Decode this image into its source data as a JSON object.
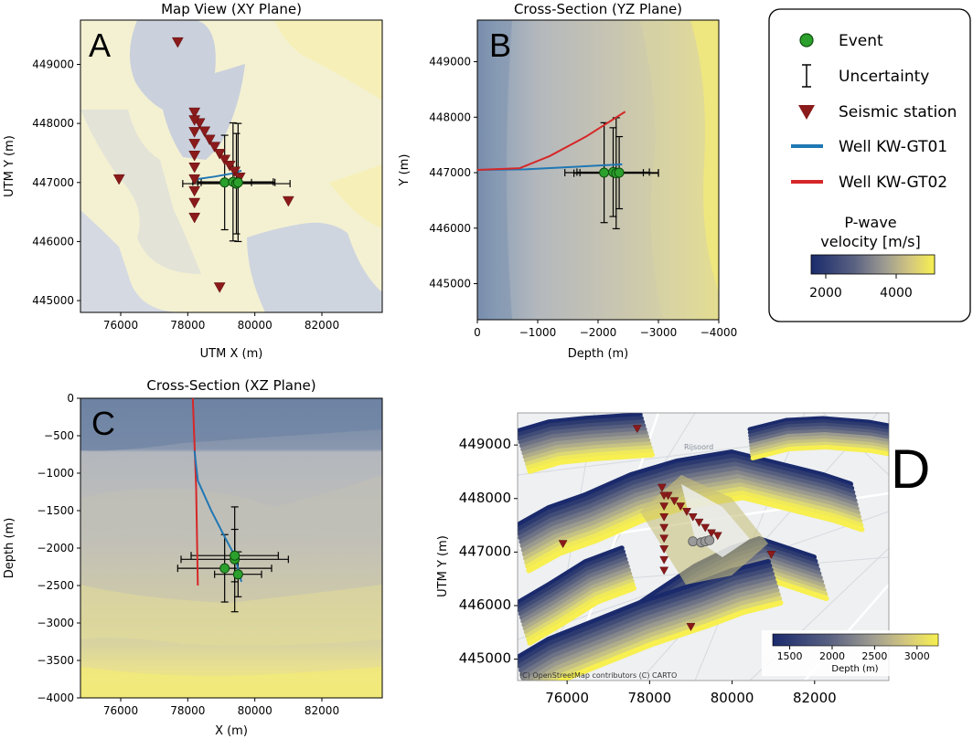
{
  "colors": {
    "well1": "#1f77b4",
    "well2": "#d62728",
    "station": "#8b1a1a",
    "event": "#2ca02c",
    "event_gray": "#9a9a9a",
    "cmap": [
      "#1a2a6c",
      "#586080",
      "#9a9a9a",
      "#cdc48a",
      "#f6ef55"
    ]
  },
  "chart_data": [
    {
      "type": "scatter",
      "panel": "A",
      "title": "Map View (XY Plane)",
      "xlabel": "UTM X (m)",
      "ylabel": "UTM Y (m)",
      "xlim": [
        74800,
        83800
      ],
      "ylim": [
        444800,
        449750
      ],
      "xticks": [
        76000,
        78000,
        80000,
        82000
      ],
      "yticks": [
        445000,
        446000,
        447000,
        448000,
        449000
      ],
      "stations": [
        [
          77700,
          449370
        ],
        [
          75950,
          447050
        ],
        [
          81000,
          446680
        ],
        [
          78950,
          445220
        ],
        [
          78200,
          448180
        ],
        [
          78350,
          448000
        ],
        [
          78500,
          447860
        ],
        [
          78650,
          447720
        ],
        [
          78800,
          447600
        ],
        [
          78950,
          447480
        ],
        [
          79100,
          447380
        ],
        [
          79250,
          447280
        ],
        [
          79400,
          447180
        ],
        [
          79550,
          447080
        ],
        [
          78200,
          448050
        ],
        [
          78200,
          447850
        ],
        [
          78200,
          447650
        ],
        [
          78200,
          447450
        ],
        [
          78200,
          447250
        ],
        [
          78200,
          447050
        ],
        [
          78200,
          446850
        ],
        [
          78200,
          446650
        ],
        [
          78200,
          446400
        ]
      ],
      "well1": [
        [
          78200,
          447050
        ],
        [
          78800,
          447100
        ],
        [
          79300,
          447150
        ],
        [
          79600,
          447200
        ]
      ],
      "well2": [
        [
          78200,
          447050
        ],
        [
          78300,
          447060
        ]
      ],
      "events": [
        {
          "x": 79100,
          "y": 447000,
          "xerr": 800,
          "yerr": 800
        },
        {
          "x": 79350,
          "y": 447010,
          "xerr": 1200,
          "yerr": 1000
        },
        {
          "x": 79450,
          "y": 446980,
          "xerr": 1600,
          "yerr": 850
        },
        {
          "x": 79500,
          "y": 447000,
          "xerr": 1100,
          "yerr": 1000
        }
      ]
    },
    {
      "type": "scatter",
      "panel": "B",
      "title": "Cross-Section (YZ Plane)",
      "xlabel": "Depth (m)",
      "ylabel": "Y (m)",
      "xlim": [
        0,
        -4000
      ],
      "ylim": [
        444350,
        449750
      ],
      "xticks": [
        0,
        -1000,
        -2000,
        -3000,
        -4000
      ],
      "xticklabels": [
        "0",
        "−1000",
        "−2000",
        "−3000",
        "−4000"
      ],
      "yticks": [
        445000,
        446000,
        447000,
        448000,
        449000
      ],
      "well1": [
        [
          0,
          447050
        ],
        [
          -800,
          447060
        ],
        [
          -1500,
          447100
        ],
        [
          -2400,
          447150
        ]
      ],
      "well2": [
        [
          0,
          447050
        ],
        [
          -700,
          447080
        ],
        [
          -1200,
          447300
        ],
        [
          -1800,
          447650
        ],
        [
          -2450,
          448100
        ]
      ],
      "events": [
        {
          "x": -2100,
          "y": 447000,
          "xerr": 650,
          "yerr": 900
        },
        {
          "x": -2250,
          "y": 447010,
          "xerr": 600,
          "yerr": 800
        },
        {
          "x": -2300,
          "y": 446990,
          "xerr": 700,
          "yerr": 1000
        },
        {
          "x": -2350,
          "y": 447000,
          "xerr": 650,
          "yerr": 650
        }
      ]
    },
    {
      "type": "scatter",
      "panel": "C",
      "title": "Cross-Section (XZ Plane)",
      "xlabel": "X (m)",
      "ylabel": "Depth (m)",
      "xlim": [
        74800,
        83800
      ],
      "ylim": [
        -4000,
        0
      ],
      "xticks": [
        76000,
        78000,
        80000,
        82000
      ],
      "yticks": [
        0,
        -500,
        -1000,
        -1500,
        -2000,
        -2500,
        -3000,
        -3500,
        -4000
      ],
      "yticklabels": [
        "0",
        "−500",
        "−1000",
        "−1500",
        "−2000",
        "−2500",
        "−3000",
        "−3500",
        "−4000"
      ],
      "well1": [
        [
          78200,
          -700
        ],
        [
          78300,
          -1100
        ],
        [
          78700,
          -1500
        ],
        [
          79100,
          -1850
        ],
        [
          79400,
          -2100
        ],
        [
          79600,
          -2450
        ]
      ],
      "well2": [
        [
          78150,
          0
        ],
        [
          78200,
          -600
        ],
        [
          78250,
          -1200
        ],
        [
          78300,
          -2500
        ]
      ],
      "events": [
        {
          "x": 79100,
          "y": -2270,
          "xerr": 1400,
          "yerr": 450
        },
        {
          "x": 79400,
          "y": -2150,
          "xerr": 1600,
          "yerr": 700
        },
        {
          "x": 79400,
          "y": -2100,
          "xerr": 1300,
          "yerr": 350
        },
        {
          "x": 79500,
          "y": -2350,
          "xerr": 700,
          "yerr": 300
        }
      ]
    },
    {
      "type": "scatter",
      "panel": "D",
      "ylabel": "UTM Y (m)",
      "xlim": [
        74800,
        83800
      ],
      "ylim": [
        444600,
        449600
      ],
      "xticks": [
        76000,
        78000,
        80000,
        82000
      ],
      "yticks": [
        445000,
        446000,
        447000,
        448000,
        449000
      ],
      "colorbar_label": "Depth (m)",
      "colorbar_ticks": [
        1500,
        2000,
        2500,
        3000
      ],
      "colorbar_range": [
        1300,
        3250
      ],
      "stations": [
        [
          77700,
          449300
        ],
        [
          75900,
          447150
        ],
        [
          80950,
          446950
        ],
        [
          79000,
          445600
        ],
        [
          78300,
          448200
        ],
        [
          78450,
          448050
        ],
        [
          78600,
          447950
        ],
        [
          78750,
          447850
        ],
        [
          78900,
          447750
        ],
        [
          79050,
          447650
        ],
        [
          79200,
          447550
        ],
        [
          79350,
          447450
        ],
        [
          79500,
          447350
        ],
        [
          79650,
          447300
        ],
        [
          78350,
          448050
        ],
        [
          78350,
          447850
        ],
        [
          78350,
          447650
        ],
        [
          78350,
          447450
        ],
        [
          78350,
          447250
        ],
        [
          78350,
          447050
        ],
        [
          78350,
          446850
        ],
        [
          78350,
          446650
        ]
      ],
      "events": [
        [
          79050,
          447200
        ],
        [
          79250,
          447180
        ],
        [
          79350,
          447200
        ],
        [
          79450,
          447220
        ]
      ]
    }
  ],
  "labels": {
    "A": "A",
    "B": "B",
    "C": "C",
    "D": "D",
    "attribution": "(C) OpenStreetMap contributors (C) CARTO",
    "place": "Rijsoord",
    "map_district": "Rijsoord"
  },
  "legend": {
    "items": [
      "Event",
      "Uncertainty",
      "Seismic station",
      "Well KW-GT01",
      "Well KW-GT02"
    ],
    "colorbar_title_1": "P-wave",
    "colorbar_title_2": "velocity [m/s]",
    "colorbar_ticks": [
      "2000",
      "4000"
    ]
  }
}
